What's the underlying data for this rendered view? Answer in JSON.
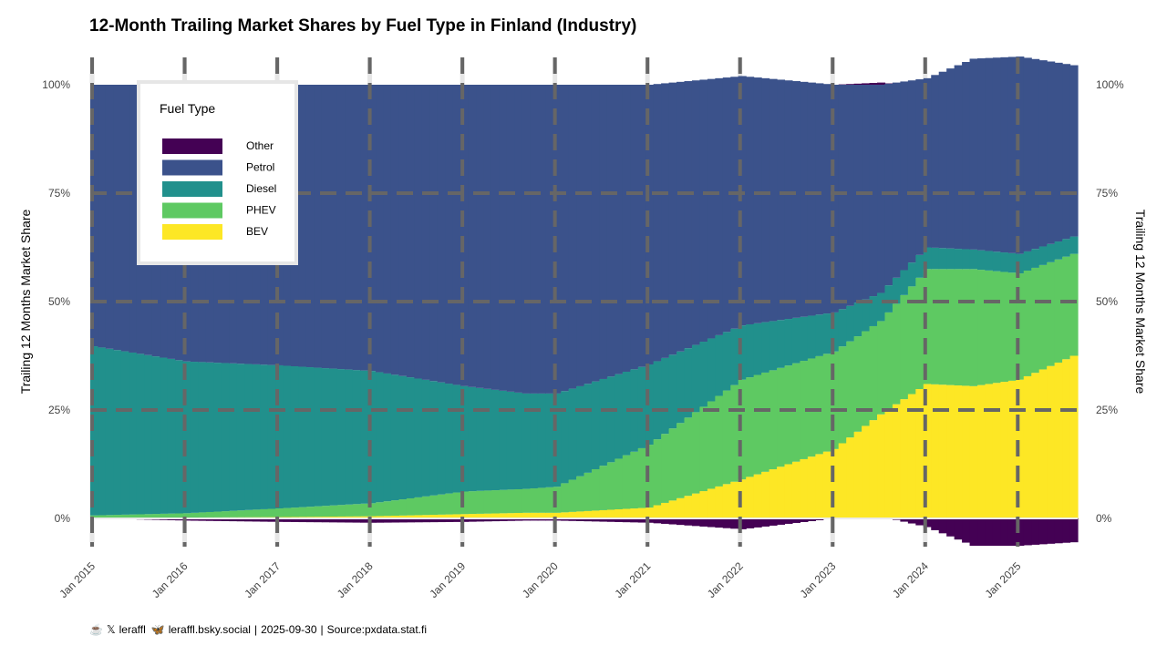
{
  "chart_data": {
    "type": "area",
    "title": "12-Month Trailing Market Shares by Fuel Type in Finland (Industry)",
    "ylabel": "Trailing 12 Months Market Share",
    "ylabel_right": "Trailing 12 Months Market Share",
    "xlabel": "",
    "ylim": [
      -0.07,
      1.06
    ],
    "y_ticks": [
      0,
      0.25,
      0.5,
      0.75,
      1.0
    ],
    "y_tick_labels": [
      "0%",
      "25%",
      "50%",
      "75%",
      "100%"
    ],
    "x_ticks": [
      "2015-01",
      "2016-01",
      "2017-01",
      "2018-01",
      "2019-01",
      "2020-01",
      "2021-01",
      "2022-01",
      "2023-01",
      "2024-01",
      "2025-01"
    ],
    "x_tick_labels": [
      "Jan 2015",
      "Jan 2016",
      "Jan 2017",
      "Jan 2018",
      "Jan 2019",
      "Jan 2020",
      "Jan 2021",
      "Jan 2022",
      "Jan 2023",
      "Jan 2024",
      "Jan 2025"
    ],
    "x_range": [
      "2015-01",
      "2025-08"
    ],
    "legend": {
      "title": "Fuel Type",
      "position": "top-left",
      "entries": [
        "Other",
        "Petrol",
        "Diesel",
        "PHEV",
        "BEV"
      ]
    },
    "colors": {
      "Other": "#440154",
      "Petrol": "#3b528b",
      "Diesel": "#21908c",
      "PHEV": "#5ec962",
      "BEV": "#fde725"
    },
    "keyframes": {
      "x": [
        "2015-01",
        "2016-01",
        "2017-01",
        "2018-01",
        "2019-01",
        "2019-09",
        "2020-01",
        "2021-01",
        "2022-01",
        "2023-01",
        "2023-07",
        "2024-01",
        "2024-07",
        "2025-01",
        "2025-08"
      ],
      "BEV": [
        0.002,
        0.002,
        0.003,
        0.005,
        0.01,
        0.013,
        0.013,
        0.025,
        0.09,
        0.16,
        0.24,
        0.31,
        0.305,
        0.32,
        0.375
      ],
      "PHEV": [
        0.005,
        0.01,
        0.02,
        0.03,
        0.052,
        0.055,
        0.06,
        0.145,
        0.23,
        0.225,
        0.215,
        0.265,
        0.27,
        0.245,
        0.235
      ],
      "Diesel": [
        0.39,
        0.35,
        0.33,
        0.305,
        0.243,
        0.22,
        0.215,
        0.185,
        0.125,
        0.09,
        0.065,
        0.05,
        0.045,
        0.045,
        0.04
      ],
      "Petrol": [
        0.603,
        0.638,
        0.647,
        0.66,
        0.695,
        0.712,
        0.712,
        0.645,
        0.575,
        0.525,
        0.48,
        0.39,
        0.44,
        0.455,
        0.395
      ],
      "Other": [
        0.0,
        -0.005,
        -0.008,
        -0.01,
        -0.008,
        -0.005,
        -0.005,
        -0.01,
        -0.025,
        0.0,
        0.005,
        -0.02,
        -0.063,
        -0.063,
        -0.055
      ]
    }
  },
  "caption": {
    "handle_x": "leraffl",
    "handle_bsky": "leraffl.bsky.social",
    "date": "2025-09-30",
    "source": "Source:pxdata.stat.fi"
  }
}
